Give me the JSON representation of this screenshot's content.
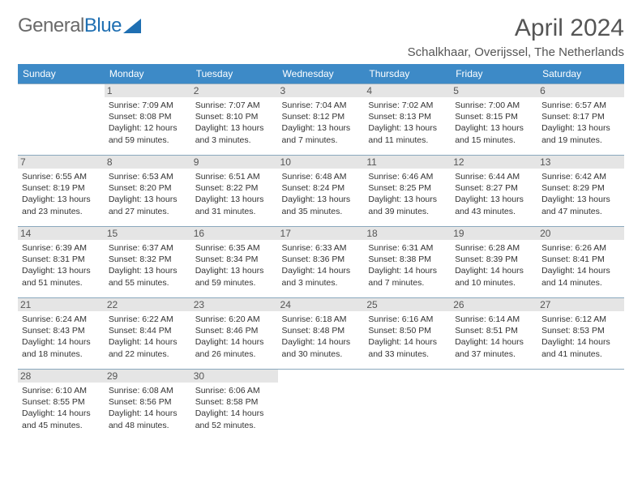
{
  "logo": {
    "part1": "General",
    "part2": "Blue"
  },
  "title": "April 2024",
  "location": "Schalkhaar, Overijssel, The Netherlands",
  "weekdays": [
    "Sunday",
    "Monday",
    "Tuesday",
    "Wednesday",
    "Thursday",
    "Friday",
    "Saturday"
  ],
  "colors": {
    "header_bg": "#3d8ac7",
    "daynum_bg": "#e5e5e5",
    "border": "#8aa8bd",
    "logo_gray": "#6a6a6a",
    "logo_blue": "#1f6fb2"
  },
  "weeks": [
    [
      null,
      {
        "n": "1",
        "sr": "Sunrise: 7:09 AM",
        "ss": "Sunset: 8:08 PM",
        "d1": "Daylight: 12 hours",
        "d2": "and 59 minutes."
      },
      {
        "n": "2",
        "sr": "Sunrise: 7:07 AM",
        "ss": "Sunset: 8:10 PM",
        "d1": "Daylight: 13 hours",
        "d2": "and 3 minutes."
      },
      {
        "n": "3",
        "sr": "Sunrise: 7:04 AM",
        "ss": "Sunset: 8:12 PM",
        "d1": "Daylight: 13 hours",
        "d2": "and 7 minutes."
      },
      {
        "n": "4",
        "sr": "Sunrise: 7:02 AM",
        "ss": "Sunset: 8:13 PM",
        "d1": "Daylight: 13 hours",
        "d2": "and 11 minutes."
      },
      {
        "n": "5",
        "sr": "Sunrise: 7:00 AM",
        "ss": "Sunset: 8:15 PM",
        "d1": "Daylight: 13 hours",
        "d2": "and 15 minutes."
      },
      {
        "n": "6",
        "sr": "Sunrise: 6:57 AM",
        "ss": "Sunset: 8:17 PM",
        "d1": "Daylight: 13 hours",
        "d2": "and 19 minutes."
      }
    ],
    [
      {
        "n": "7",
        "sr": "Sunrise: 6:55 AM",
        "ss": "Sunset: 8:19 PM",
        "d1": "Daylight: 13 hours",
        "d2": "and 23 minutes."
      },
      {
        "n": "8",
        "sr": "Sunrise: 6:53 AM",
        "ss": "Sunset: 8:20 PM",
        "d1": "Daylight: 13 hours",
        "d2": "and 27 minutes."
      },
      {
        "n": "9",
        "sr": "Sunrise: 6:51 AM",
        "ss": "Sunset: 8:22 PM",
        "d1": "Daylight: 13 hours",
        "d2": "and 31 minutes."
      },
      {
        "n": "10",
        "sr": "Sunrise: 6:48 AM",
        "ss": "Sunset: 8:24 PM",
        "d1": "Daylight: 13 hours",
        "d2": "and 35 minutes."
      },
      {
        "n": "11",
        "sr": "Sunrise: 6:46 AM",
        "ss": "Sunset: 8:25 PM",
        "d1": "Daylight: 13 hours",
        "d2": "and 39 minutes."
      },
      {
        "n": "12",
        "sr": "Sunrise: 6:44 AM",
        "ss": "Sunset: 8:27 PM",
        "d1": "Daylight: 13 hours",
        "d2": "and 43 minutes."
      },
      {
        "n": "13",
        "sr": "Sunrise: 6:42 AM",
        "ss": "Sunset: 8:29 PM",
        "d1": "Daylight: 13 hours",
        "d2": "and 47 minutes."
      }
    ],
    [
      {
        "n": "14",
        "sr": "Sunrise: 6:39 AM",
        "ss": "Sunset: 8:31 PM",
        "d1": "Daylight: 13 hours",
        "d2": "and 51 minutes."
      },
      {
        "n": "15",
        "sr": "Sunrise: 6:37 AM",
        "ss": "Sunset: 8:32 PM",
        "d1": "Daylight: 13 hours",
        "d2": "and 55 minutes."
      },
      {
        "n": "16",
        "sr": "Sunrise: 6:35 AM",
        "ss": "Sunset: 8:34 PM",
        "d1": "Daylight: 13 hours",
        "d2": "and 59 minutes."
      },
      {
        "n": "17",
        "sr": "Sunrise: 6:33 AM",
        "ss": "Sunset: 8:36 PM",
        "d1": "Daylight: 14 hours",
        "d2": "and 3 minutes."
      },
      {
        "n": "18",
        "sr": "Sunrise: 6:31 AM",
        "ss": "Sunset: 8:38 PM",
        "d1": "Daylight: 14 hours",
        "d2": "and 7 minutes."
      },
      {
        "n": "19",
        "sr": "Sunrise: 6:28 AM",
        "ss": "Sunset: 8:39 PM",
        "d1": "Daylight: 14 hours",
        "d2": "and 10 minutes."
      },
      {
        "n": "20",
        "sr": "Sunrise: 6:26 AM",
        "ss": "Sunset: 8:41 PM",
        "d1": "Daylight: 14 hours",
        "d2": "and 14 minutes."
      }
    ],
    [
      {
        "n": "21",
        "sr": "Sunrise: 6:24 AM",
        "ss": "Sunset: 8:43 PM",
        "d1": "Daylight: 14 hours",
        "d2": "and 18 minutes."
      },
      {
        "n": "22",
        "sr": "Sunrise: 6:22 AM",
        "ss": "Sunset: 8:44 PM",
        "d1": "Daylight: 14 hours",
        "d2": "and 22 minutes."
      },
      {
        "n": "23",
        "sr": "Sunrise: 6:20 AM",
        "ss": "Sunset: 8:46 PM",
        "d1": "Daylight: 14 hours",
        "d2": "and 26 minutes."
      },
      {
        "n": "24",
        "sr": "Sunrise: 6:18 AM",
        "ss": "Sunset: 8:48 PM",
        "d1": "Daylight: 14 hours",
        "d2": "and 30 minutes."
      },
      {
        "n": "25",
        "sr": "Sunrise: 6:16 AM",
        "ss": "Sunset: 8:50 PM",
        "d1": "Daylight: 14 hours",
        "d2": "and 33 minutes."
      },
      {
        "n": "26",
        "sr": "Sunrise: 6:14 AM",
        "ss": "Sunset: 8:51 PM",
        "d1": "Daylight: 14 hours",
        "d2": "and 37 minutes."
      },
      {
        "n": "27",
        "sr": "Sunrise: 6:12 AM",
        "ss": "Sunset: 8:53 PM",
        "d1": "Daylight: 14 hours",
        "d2": "and 41 minutes."
      }
    ],
    [
      {
        "n": "28",
        "sr": "Sunrise: 6:10 AM",
        "ss": "Sunset: 8:55 PM",
        "d1": "Daylight: 14 hours",
        "d2": "and 45 minutes."
      },
      {
        "n": "29",
        "sr": "Sunrise: 6:08 AM",
        "ss": "Sunset: 8:56 PM",
        "d1": "Daylight: 14 hours",
        "d2": "and 48 minutes."
      },
      {
        "n": "30",
        "sr": "Sunrise: 6:06 AM",
        "ss": "Sunset: 8:58 PM",
        "d1": "Daylight: 14 hours",
        "d2": "and 52 minutes."
      },
      null,
      null,
      null,
      null
    ]
  ]
}
